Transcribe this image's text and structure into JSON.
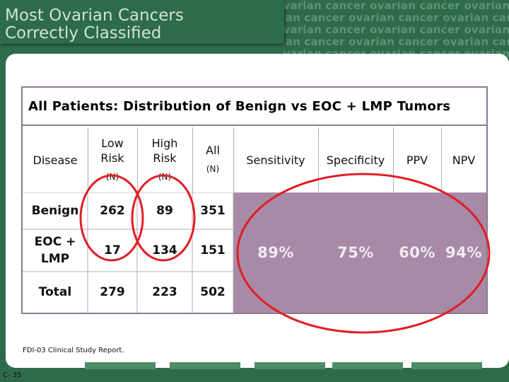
{
  "title": {
    "line1": "Most Ovarian Cancers",
    "line2": "Correctly Classified"
  },
  "background_watermark": "ovarian cancer",
  "table": {
    "title": "All Patients: Distribution of Benign vs EOC + LMP Tumors",
    "headers": {
      "disease": "Disease",
      "low_risk": "Low Risk",
      "low_risk_sub": "(N)",
      "high_risk": "High Risk",
      "high_risk_sub": "(N)",
      "all": "All",
      "all_sub": "(N)",
      "sensitivity": "Sensitivity",
      "specificity": "Specificity",
      "ppv": "PPV",
      "npv": "NPV"
    },
    "rows": [
      {
        "disease": "Benign",
        "low": "262",
        "high": "89",
        "all": "351"
      },
      {
        "disease": "EOC + LMP",
        "low": "17",
        "high": "134",
        "all": "151"
      },
      {
        "disease": "Total",
        "low": "279",
        "high": "223",
        "all": "502"
      }
    ],
    "stats": {
      "sensitivity": "89%",
      "specificity": "75%",
      "ppv": "60%",
      "npv": "94%"
    }
  },
  "source": "FDI-03 Clinical Study Report.",
  "slide_number": "C- 35",
  "colors": {
    "background": "#2e6b4a",
    "data_fill": "#a68aa6",
    "highlight_circle": "#e21d24",
    "border": "#8b7b8e"
  }
}
